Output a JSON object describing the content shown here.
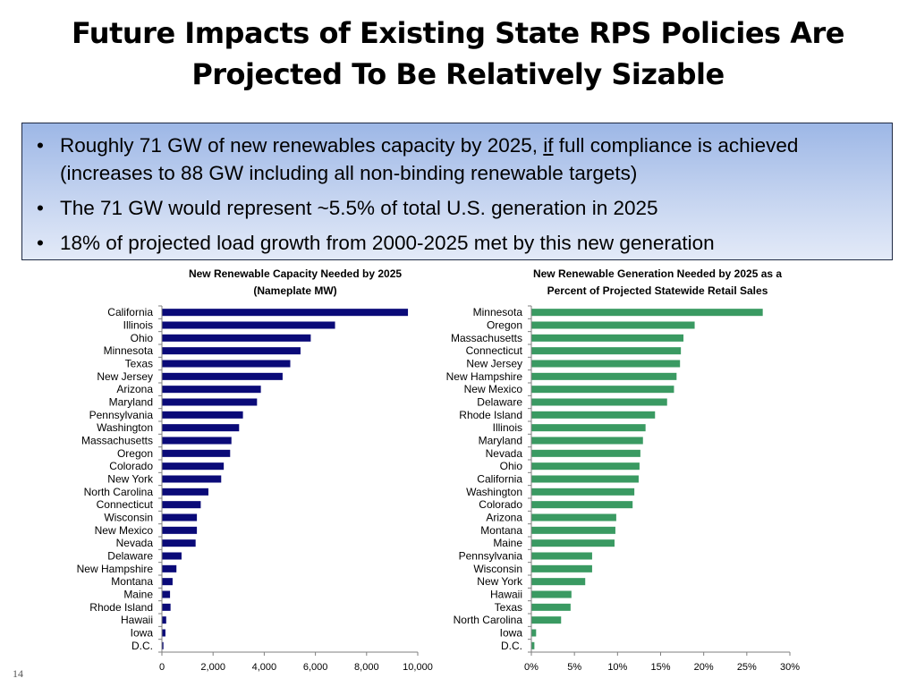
{
  "slide": {
    "title_line1": "Future Impacts of Existing State RPS Policies Are",
    "title_line2": "Projected To Be Relatively Sizable",
    "bullets": [
      {
        "pre": "Roughly 71 GW of new renewables capacity by 2025, ",
        "emph": "if",
        "post": " full compliance is achieved (increases to 88 GW including all non-binding renewable targets)"
      },
      {
        "pre": "The 71 GW would represent ~5.5% of total U.S. generation in 2025",
        "emph": "",
        "post": ""
      },
      {
        "pre": "18% of projected load growth from 2000-2025 met by this new generation",
        "emph": "",
        "post": ""
      }
    ],
    "bullet_symbol": "•",
    "slide_number": "14"
  },
  "chart_data": [
    {
      "type": "bar",
      "orientation": "horizontal",
      "title_line1": "New Renewable Capacity Needed by 2025",
      "title_line2": "(Nameplate MW)",
      "color": "#0a0a78",
      "xlim": [
        0,
        10000
      ],
      "ticks": [
        0,
        2000,
        4000,
        6000,
        8000,
        10000
      ],
      "tick_labels": [
        "0",
        "2,000",
        "4,000",
        "6,000",
        "8,000",
        "10,000"
      ],
      "categories": [
        "California",
        "Illinois",
        "Ohio",
        "Minnesota",
        "Texas",
        "New Jersey",
        "Arizona",
        "Maryland",
        "Pennsylvania",
        "Washington",
        "Massachusetts",
        "Oregon",
        "Colorado",
        "New York",
        "North Carolina",
        "Connecticut",
        "Wisconsin",
        "New Mexico",
        "Nevada",
        "Delaware",
        "New Hampshire",
        "Montana",
        "Maine",
        "Rhode Island",
        "Hawaii",
        "Iowa",
        "D.C."
      ],
      "values": [
        9600,
        6750,
        5800,
        5400,
        5000,
        4700,
        3850,
        3700,
        3150,
        3000,
        2700,
        2650,
        2400,
        2300,
        1800,
        1500,
        1350,
        1350,
        1300,
        750,
        550,
        400,
        300,
        320,
        150,
        120,
        40
      ]
    },
    {
      "type": "bar",
      "orientation": "horizontal",
      "title_line1": "New Renewable Generation Needed by 2025 as a",
      "title_line2": "Percent of Projected Statewide Retail Sales",
      "color": "#3a9a62",
      "xlim": [
        0,
        30
      ],
      "ticks": [
        0,
        5,
        10,
        15,
        20,
        25,
        30
      ],
      "tick_labels": [
        "0%",
        "5%",
        "10%",
        "15%",
        "20%",
        "25%",
        "30%"
      ],
      "categories": [
        "Minnesota",
        "Oregon",
        "Massachusetts",
        "Connecticut",
        "New Jersey",
        "New Hampshire",
        "New Mexico",
        "Delaware",
        "Rhode Island",
        "Illinois",
        "Maryland",
        "Nevada",
        "Ohio",
        "California",
        "Washington",
        "Colorado",
        "Arizona",
        "Montana",
        "Maine",
        "Pennsylvania",
        "Wisconsin",
        "New York",
        "Hawaii",
        "Texas",
        "North Carolina",
        "Iowa",
        "D.C."
      ],
      "values": [
        26.8,
        18.9,
        17.6,
        17.3,
        17.2,
        16.8,
        16.5,
        15.7,
        14.3,
        13.2,
        12.9,
        12.6,
        12.5,
        12.4,
        11.9,
        11.7,
        9.8,
        9.7,
        9.6,
        7.0,
        7.0,
        6.2,
        4.6,
        4.5,
        3.4,
        0.5,
        0.3
      ]
    }
  ]
}
